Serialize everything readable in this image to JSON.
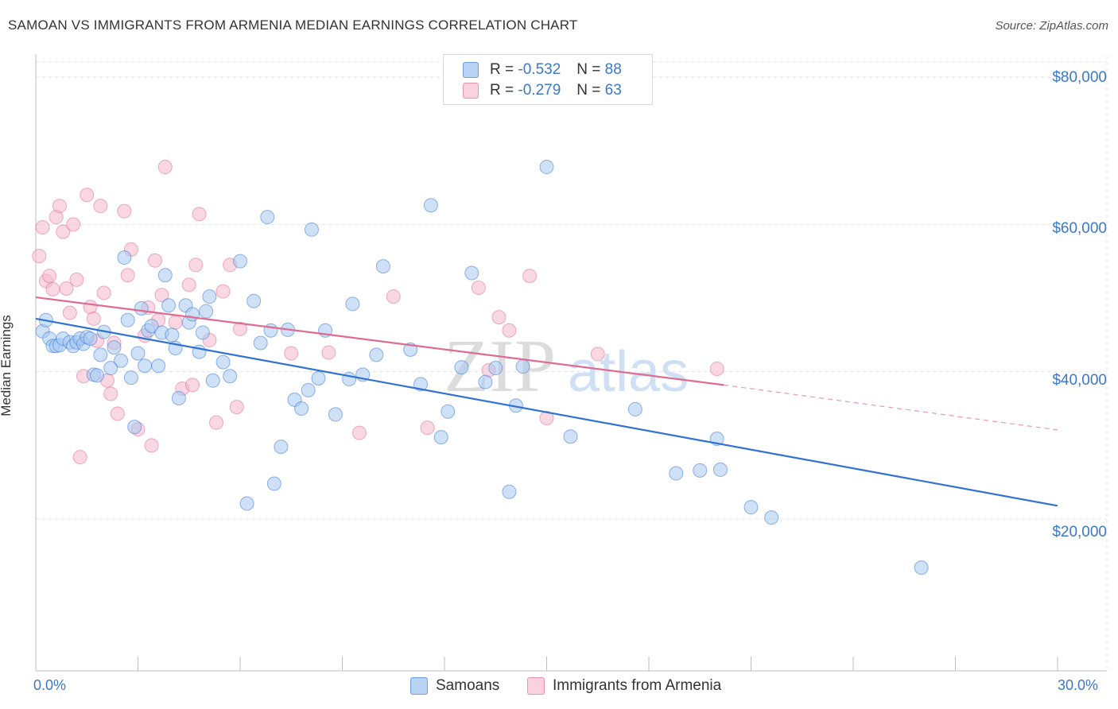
{
  "header": {
    "title": "SAMOAN VS IMMIGRANTS FROM ARMENIA MEDIAN EARNINGS CORRELATION CHART",
    "source": "Source: ZipAtlas.com"
  },
  "watermark": {
    "zip": "ZIP",
    "atlas": "atlas"
  },
  "legend_top": {
    "rows": [
      {
        "r_label": "R =",
        "r_value": "-0.532",
        "n_label": "N =",
        "n_value": "88",
        "color": "#a8c8f0"
      },
      {
        "r_label": "R =",
        "r_value": "-0.279",
        "n_label": "N =",
        "n_value": "63",
        "color": "#f5b8cb"
      }
    ]
  },
  "legend_bottom": {
    "items": [
      {
        "label": "Samoans",
        "color": "#a8c8f0"
      },
      {
        "label": "Immigrants from Armenia",
        "color": "#f5b8cb"
      }
    ]
  },
  "axes": {
    "ylabel": "Median Earnings",
    "x_min_label": "0.0%",
    "x_max_label": "30.0%",
    "y_ticks": [
      "$80,000",
      "$60,000",
      "$40,000",
      "$20,000"
    ]
  },
  "chart_data": {
    "type": "scatter",
    "title": "SAMOAN VS IMMIGRANTS FROM ARMENIA MEDIAN EARNINGS CORRELATION CHART",
    "xlabel": "",
    "ylabel": "Median Earnings",
    "xlim": [
      0,
      30
    ],
    "ylim": [
      2000,
      84000
    ],
    "y_tick_values": [
      80000,
      60000,
      40000,
      20000
    ],
    "grid": true,
    "series": [
      {
        "name": "Samoans",
        "color": "#3b78d8",
        "fill": "#a8c8f0",
        "trend": {
          "x": [
            0,
            30
          ],
          "y": [
            47200,
            21800
          ],
          "dashed_from": null
        },
        "points": [
          [
            0.2,
            45500
          ],
          [
            0.3,
            47000
          ],
          [
            0.4,
            44500
          ],
          [
            0.5,
            43500
          ],
          [
            0.6,
            43500
          ],
          [
            0.7,
            43600
          ],
          [
            0.8,
            44500
          ],
          [
            1.0,
            44000
          ],
          [
            1.1,
            43500
          ],
          [
            1.2,
            44000
          ],
          [
            1.3,
            44500
          ],
          [
            1.4,
            43800
          ],
          [
            1.5,
            44700
          ],
          [
            1.6,
            44500
          ],
          [
            1.7,
            39600
          ],
          [
            1.8,
            39500
          ],
          [
            1.9,
            42300
          ],
          [
            2.0,
            45400
          ],
          [
            2.2,
            40500
          ],
          [
            2.3,
            43300
          ],
          [
            2.5,
            41500
          ],
          [
            2.6,
            55500
          ],
          [
            2.7,
            47000
          ],
          [
            2.8,
            39200
          ],
          [
            2.9,
            32500
          ],
          [
            3.0,
            42500
          ],
          [
            3.1,
            48600
          ],
          [
            3.2,
            40800
          ],
          [
            3.3,
            45600
          ],
          [
            3.4,
            46200
          ],
          [
            3.6,
            40800
          ],
          [
            3.7,
            45300
          ],
          [
            3.8,
            53100
          ],
          [
            3.9,
            49000
          ],
          [
            4.0,
            45000
          ],
          [
            4.1,
            43200
          ],
          [
            4.2,
            36400
          ],
          [
            4.4,
            49000
          ],
          [
            4.5,
            46700
          ],
          [
            4.6,
            47800
          ],
          [
            4.8,
            42700
          ],
          [
            4.9,
            45300
          ],
          [
            5.0,
            48200
          ],
          [
            5.1,
            50200
          ],
          [
            5.2,
            38800
          ],
          [
            5.5,
            41300
          ],
          [
            5.7,
            39400
          ],
          [
            6.0,
            55000
          ],
          [
            6.2,
            22100
          ],
          [
            6.4,
            49600
          ],
          [
            6.6,
            43900
          ],
          [
            6.8,
            61000
          ],
          [
            6.9,
            45600
          ],
          [
            7.0,
            24800
          ],
          [
            7.2,
            29800
          ],
          [
            7.4,
            45700
          ],
          [
            7.6,
            36200
          ],
          [
            7.8,
            35000
          ],
          [
            8.0,
            37500
          ],
          [
            8.1,
            59300
          ],
          [
            8.3,
            39100
          ],
          [
            8.5,
            45600
          ],
          [
            8.8,
            34200
          ],
          [
            9.2,
            39000
          ],
          [
            9.3,
            49200
          ],
          [
            9.6,
            39600
          ],
          [
            10.0,
            42300
          ],
          [
            10.2,
            54300
          ],
          [
            11.0,
            43000
          ],
          [
            11.3,
            38300
          ],
          [
            11.6,
            62600
          ],
          [
            11.9,
            31100
          ],
          [
            12.1,
            34600
          ],
          [
            12.5,
            40600
          ],
          [
            12.8,
            53400
          ],
          [
            13.2,
            38600
          ],
          [
            13.5,
            40500
          ],
          [
            13.9,
            23700
          ],
          [
            14.1,
            35400
          ],
          [
            14.3,
            40700
          ],
          [
            15.0,
            67800
          ],
          [
            15.7,
            31200
          ],
          [
            17.6,
            34900
          ],
          [
            18.8,
            26200
          ],
          [
            19.5,
            26600
          ],
          [
            20.1,
            26700
          ],
          [
            20.0,
            30900
          ],
          [
            21.0,
            21600
          ],
          [
            21.6,
            20200
          ],
          [
            26.0,
            13400
          ]
        ]
      },
      {
        "name": "Immigrants from Armenia",
        "color": "#e06b92",
        "fill": "#f5b8cb",
        "trend": {
          "x": [
            0,
            20.2
          ],
          "y": [
            50100,
            38200
          ],
          "dashed_to": [
            30,
            32100
          ]
        },
        "points": [
          [
            0.1,
            55700
          ],
          [
            0.2,
            59600
          ],
          [
            0.3,
            52300
          ],
          [
            0.4,
            53000
          ],
          [
            0.5,
            51200
          ],
          [
            0.6,
            61000
          ],
          [
            0.7,
            62500
          ],
          [
            0.8,
            59000
          ],
          [
            0.9,
            51300
          ],
          [
            1.0,
            48000
          ],
          [
            1.1,
            60000
          ],
          [
            1.2,
            52500
          ],
          [
            1.3,
            28400
          ],
          [
            1.4,
            39400
          ],
          [
            1.5,
            64000
          ],
          [
            1.6,
            48800
          ],
          [
            1.7,
            47200
          ],
          [
            1.8,
            44200
          ],
          [
            1.9,
            62500
          ],
          [
            2.0,
            50700
          ],
          [
            2.1,
            38800
          ],
          [
            2.2,
            37000
          ],
          [
            2.3,
            43900
          ],
          [
            2.4,
            34300
          ],
          [
            2.6,
            61800
          ],
          [
            2.7,
            53100
          ],
          [
            2.8,
            56600
          ],
          [
            3.0,
            32200
          ],
          [
            3.2,
            44900
          ],
          [
            3.3,
            48700
          ],
          [
            3.4,
            30000
          ],
          [
            3.5,
            55100
          ],
          [
            3.6,
            47000
          ],
          [
            3.7,
            50400
          ],
          [
            3.8,
            67800
          ],
          [
            4.1,
            46700
          ],
          [
            4.3,
            37700
          ],
          [
            4.5,
            51800
          ],
          [
            4.6,
            38200
          ],
          [
            4.7,
            54500
          ],
          [
            4.8,
            61400
          ],
          [
            5.1,
            44300
          ],
          [
            5.3,
            33100
          ],
          [
            5.5,
            50900
          ],
          [
            5.7,
            54500
          ],
          [
            5.9,
            35200
          ],
          [
            6.0,
            45800
          ],
          [
            7.5,
            42500
          ],
          [
            8.6,
            42600
          ],
          [
            9.5,
            31700
          ],
          [
            10.5,
            50200
          ],
          [
            11.5,
            32400
          ],
          [
            13.0,
            51400
          ],
          [
            13.3,
            40200
          ],
          [
            13.6,
            47400
          ],
          [
            13.9,
            45600
          ],
          [
            14.5,
            53000
          ],
          [
            15.0,
            33700
          ],
          [
            16.5,
            42400
          ],
          [
            20.0,
            40400
          ]
        ]
      }
    ]
  }
}
